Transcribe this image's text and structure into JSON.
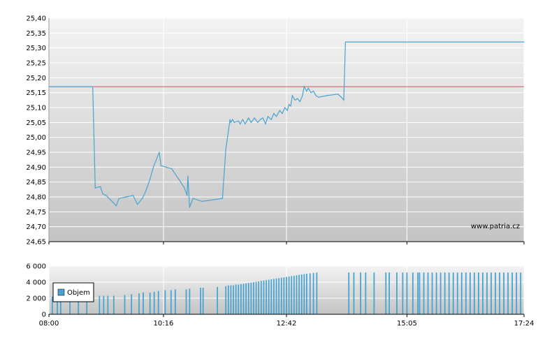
{
  "watermark": "www.patria.cz",
  "chart_data": [
    {
      "type": "line",
      "title": "",
      "x_axis_type": "time",
      "xlim": [
        "08:00",
        "17:24"
      ],
      "ylim": [
        24.65,
        25.4
      ],
      "y_ticks": [
        "25,40",
        "25,35",
        "25,30",
        "25,25",
        "25,20",
        "25,15",
        "25,10",
        "25,05",
        "25,00",
        "24,95",
        "24,90",
        "24,85",
        "24,80",
        "24,75",
        "24,70",
        "24,65"
      ],
      "x_ticks": [
        "08:00",
        "10:16",
        "12:42",
        "15:05",
        "17:24"
      ],
      "grid": true,
      "reference_line": {
        "value": 25.17,
        "color": "#d9534f"
      },
      "series": [
        {
          "color": "#4aa3cf",
          "points": [
            [
              "08:00",
              25.17
            ],
            [
              "08:52",
              25.17
            ],
            [
              "08:55",
              24.83
            ],
            [
              "09:01",
              24.835
            ],
            [
              "09:04",
              24.81
            ],
            [
              "09:08",
              24.805
            ],
            [
              "09:15",
              24.785
            ],
            [
              "09:20",
              24.77
            ],
            [
              "09:23",
              24.795
            ],
            [
              "09:32",
              24.8
            ],
            [
              "09:40",
              24.805
            ],
            [
              "09:45",
              24.775
            ],
            [
              "09:51",
              24.795
            ],
            [
              "09:55",
              24.82
            ],
            [
              "10:00",
              24.86
            ],
            [
              "10:04",
              24.9
            ],
            [
              "10:11",
              24.95
            ],
            [
              "10:13",
              24.905
            ],
            [
              "10:19",
              24.9
            ],
            [
              "10:26",
              24.895
            ],
            [
              "10:28",
              24.885
            ],
            [
              "10:34",
              24.86
            ],
            [
              "10:41",
              24.83
            ],
            [
              "10:44",
              24.805
            ],
            [
              "10:45",
              24.87
            ],
            [
              "10:47",
              24.765
            ],
            [
              "10:51",
              24.795
            ],
            [
              "11:02",
              24.785
            ],
            [
              "11:26",
              24.795
            ],
            [
              "11:30",
              24.96
            ],
            [
              "11:35",
              25.06
            ],
            [
              "11:36",
              25.05
            ],
            [
              "11:38",
              25.06
            ],
            [
              "11:40",
              25.05
            ],
            [
              "11:45",
              25.055
            ],
            [
              "11:47",
              25.045
            ],
            [
              "11:50",
              25.06
            ],
            [
              "11:53",
              25.045
            ],
            [
              "11:57",
              25.065
            ],
            [
              "12:00",
              25.05
            ],
            [
              "12:04",
              25.065
            ],
            [
              "12:08",
              25.05
            ],
            [
              "12:11",
              25.06
            ],
            [
              "12:14",
              25.065
            ],
            [
              "12:17",
              25.045
            ],
            [
              "12:20",
              25.07
            ],
            [
              "12:24",
              25.06
            ],
            [
              "12:27",
              25.08
            ],
            [
              "12:30",
              25.07
            ],
            [
              "12:34",
              25.09
            ],
            [
              "12:37",
              25.08
            ],
            [
              "12:40",
              25.1
            ],
            [
              "12:43",
              25.09
            ],
            [
              "12:45",
              25.11
            ],
            [
              "12:47",
              25.105
            ],
            [
              "12:49",
              25.14
            ],
            [
              "12:52",
              25.125
            ],
            [
              "12:55",
              25.13
            ],
            [
              "12:58",
              25.12
            ],
            [
              "13:01",
              25.14
            ],
            [
              "13:03",
              25.17
            ],
            [
              "13:06",
              25.155
            ],
            [
              "13:08",
              25.165
            ],
            [
              "13:11",
              25.15
            ],
            [
              "13:14",
              25.155
            ],
            [
              "13:17",
              25.14
            ],
            [
              "13:20",
              25.135
            ],
            [
              "13:30",
              25.14
            ],
            [
              "13:43",
              25.145
            ],
            [
              "13:47",
              25.135
            ],
            [
              "13:50",
              25.125
            ],
            [
              "13:52",
              25.32
            ],
            [
              "17:24",
              25.32
            ]
          ]
        }
      ]
    },
    {
      "type": "bar",
      "title": "",
      "x_axis_type": "time",
      "xlim": [
        "08:00",
        "17:24"
      ],
      "ylim": [
        0,
        6000
      ],
      "y_ticks": [
        "6 000",
        "4 000",
        "2 000",
        "0"
      ],
      "x_ticks": [
        "08:00",
        "10:16",
        "12:42",
        "15:05",
        "17:24"
      ],
      "legend": {
        "label": "Objem",
        "placement": "bottom-left",
        "color": "#4aa3cf"
      },
      "series": [
        {
          "name": "Objem",
          "color": "#4aa3cf",
          "bars": [
            [
              "08:04",
              2200
            ],
            [
              "08:10",
              2200
            ],
            [
              "08:14",
              2200
            ],
            [
              "08:25",
              2200
            ],
            [
              "08:35",
              2200
            ],
            [
              "08:45",
              2200
            ],
            [
              "09:00",
              2300
            ],
            [
              "09:05",
              2300
            ],
            [
              "09:10",
              2300
            ],
            [
              "09:17",
              2300
            ],
            [
              "09:30",
              2400
            ],
            [
              "09:38",
              2500
            ],
            [
              "09:47",
              2600
            ],
            [
              "09:52",
              2700
            ],
            [
              "10:00",
              2700
            ],
            [
              "10:05",
              2800
            ],
            [
              "10:10",
              2900
            ],
            [
              "10:18",
              3000
            ],
            [
              "10:25",
              3000
            ],
            [
              "10:30",
              3100
            ],
            [
              "10:43",
              3100
            ],
            [
              "10:47",
              3200
            ],
            [
              "11:00",
              3300
            ],
            [
              "11:03",
              3300
            ],
            [
              "11:20",
              3400
            ],
            [
              "11:30",
              3500
            ],
            [
              "11:33",
              3600
            ],
            [
              "11:36",
              3600
            ],
            [
              "11:39",
              3600
            ],
            [
              "11:42",
              3700
            ],
            [
              "11:45",
              3700
            ],
            [
              "11:48",
              3750
            ],
            [
              "11:51",
              3800
            ],
            [
              "11:54",
              3850
            ],
            [
              "11:57",
              3900
            ],
            [
              "12:00",
              3950
            ],
            [
              "12:03",
              4000
            ],
            [
              "12:06",
              4050
            ],
            [
              "12:09",
              4100
            ],
            [
              "12:12",
              4150
            ],
            [
              "12:15",
              4200
            ],
            [
              "12:18",
              4250
            ],
            [
              "12:21",
              4300
            ],
            [
              "12:24",
              4350
            ],
            [
              "12:27",
              4400
            ],
            [
              "12:30",
              4450
            ],
            [
              "12:33",
              4500
            ],
            [
              "12:36",
              4550
            ],
            [
              "12:39",
              4600
            ],
            [
              "12:42",
              4650
            ],
            [
              "12:45",
              4700
            ],
            [
              "12:48",
              4750
            ],
            [
              "12:51",
              4800
            ],
            [
              "12:54",
              4850
            ],
            [
              "12:57",
              4900
            ],
            [
              "13:00",
              4950
            ],
            [
              "13:03",
              5000
            ],
            [
              "13:06",
              5050
            ],
            [
              "13:10",
              5100
            ],
            [
              "13:14",
              5150
            ],
            [
              "13:18",
              5200
            ],
            [
              "13:56",
              5200
            ],
            [
              "14:02",
              5200
            ],
            [
              "14:10",
              5200
            ],
            [
              "14:16",
              5200
            ],
            [
              "14:26",
              5200
            ],
            [
              "14:40",
              5200
            ],
            [
              "14:44",
              5200
            ],
            [
              "14:53",
              5200
            ],
            [
              "15:00",
              5200
            ],
            [
              "15:05",
              5200
            ],
            [
              "15:12",
              5200
            ],
            [
              "15:18",
              5200
            ],
            [
              "15:20",
              5200
            ],
            [
              "15:25",
              5200
            ],
            [
              "15:30",
              5200
            ],
            [
              "15:35",
              5200
            ],
            [
              "15:40",
              5200
            ],
            [
              "15:45",
              5200
            ],
            [
              "15:50",
              5200
            ],
            [
              "15:55",
              5200
            ],
            [
              "16:00",
              5200
            ],
            [
              "16:05",
              5200
            ],
            [
              "16:10",
              5200
            ],
            [
              "16:15",
              5200
            ],
            [
              "16:20",
              5200
            ],
            [
              "16:25",
              5200
            ],
            [
              "16:30",
              5200
            ],
            [
              "16:35",
              5200
            ],
            [
              "16:40",
              5200
            ],
            [
              "16:45",
              5200
            ],
            [
              "16:50",
              5200
            ],
            [
              "16:55",
              5200
            ],
            [
              "17:00",
              5200
            ],
            [
              "17:05",
              5200
            ],
            [
              "17:10",
              5200
            ],
            [
              "17:15",
              5200
            ],
            [
              "17:20",
              5200
            ]
          ]
        }
      ]
    }
  ]
}
